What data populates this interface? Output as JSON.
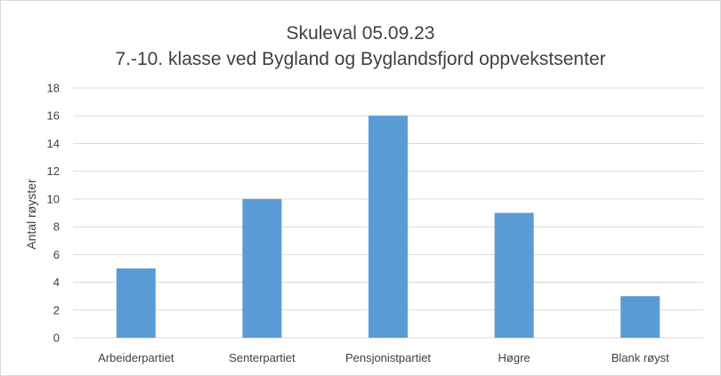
{
  "chart_data": {
    "type": "bar",
    "title": "Skuleval 05.09.23",
    "subtitle": "7.-10. klasse ved Bygland og Byglandsfjord oppvekstsenter",
    "ylabel": "Antal røyster",
    "xlabel": "",
    "categories": [
      "Arbeiderpartiet",
      "Senterpartiet",
      "Pensjonistpartiet",
      "Høgre",
      "Blank røyst"
    ],
    "values": [
      5,
      10,
      16,
      9,
      3
    ],
    "ylim": [
      0,
      18
    ],
    "yticks": [
      "0",
      "2",
      "4",
      "6",
      "8",
      "10",
      "12",
      "14",
      "16",
      "18"
    ],
    "grid": true,
    "bar_color": "#5b9bd5",
    "grid_color": "#d9d9d9"
  }
}
